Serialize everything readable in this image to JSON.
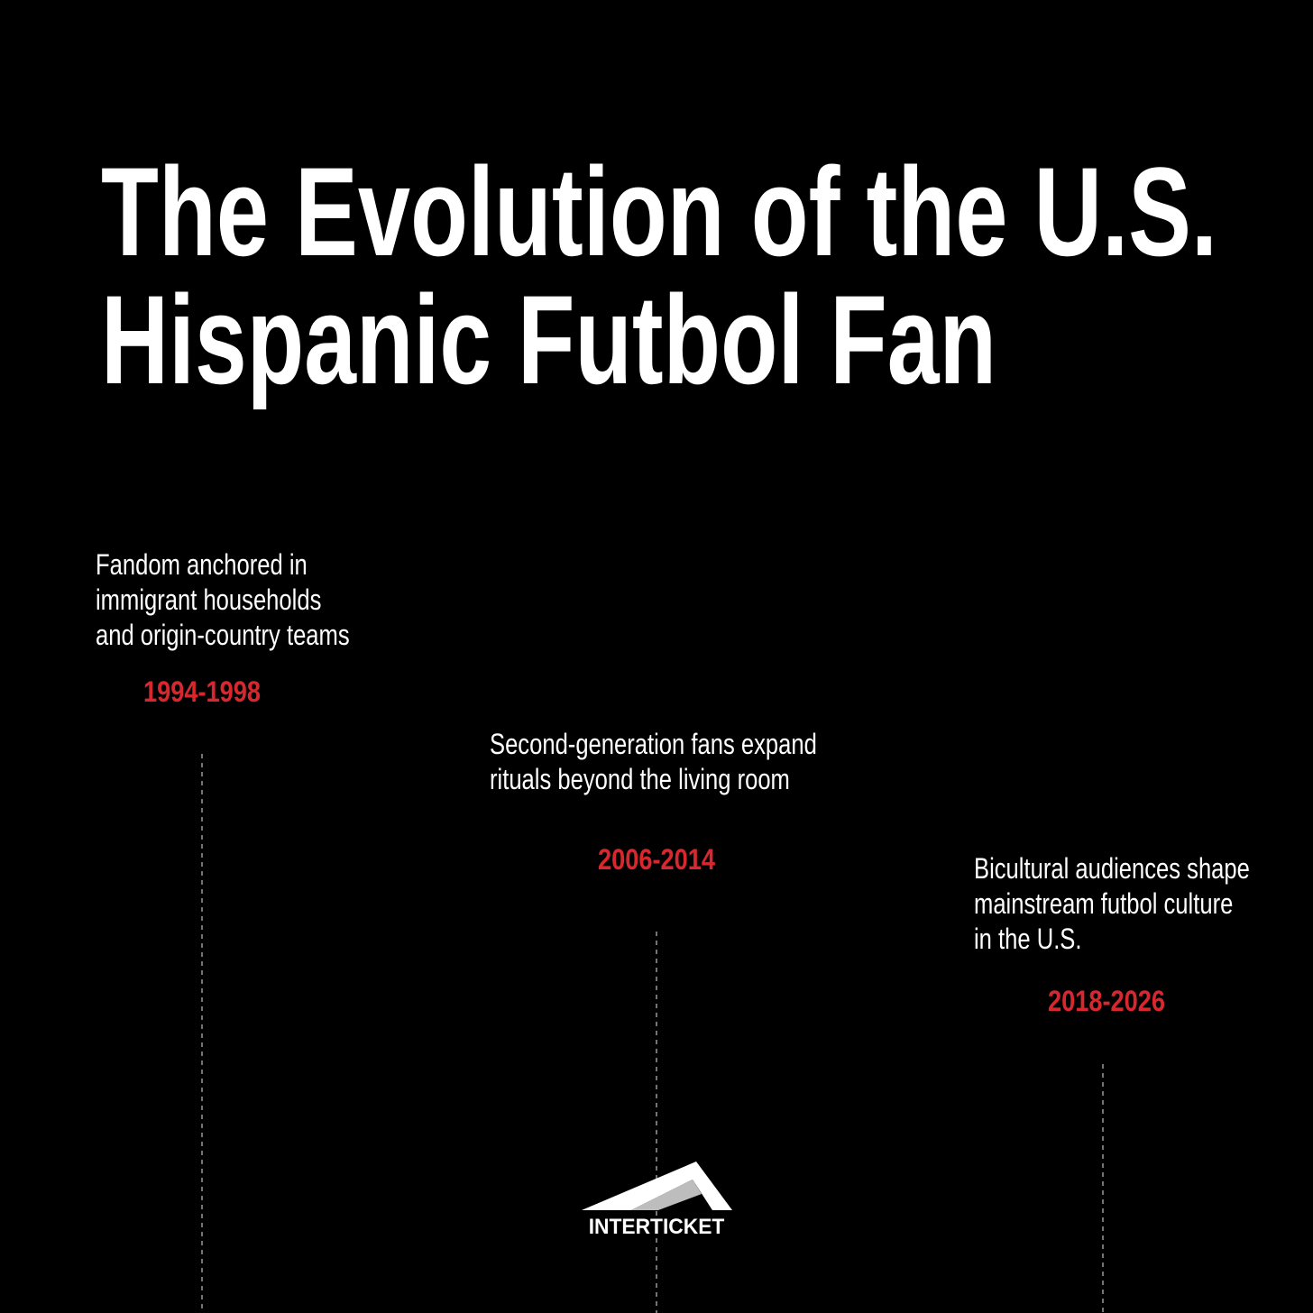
{
  "header": {
    "title": [
      "The Evolution of the U.S.",
      "Hispanic Futbol Fan"
    ]
  },
  "timeline": {
    "events": [
      {
        "description": [
          "Fandom anchored in",
          "immigrant households",
          "and origin-country teams"
        ],
        "period": "1994-1998"
      },
      {
        "description": [
          "Second-generation fans expand",
          "rituals beyond the living room"
        ],
        "period": "2006-2014"
      },
      {
        "description": [
          "Bicultural audiences shape",
          "mainstream futbol culture",
          "in the U.S."
        ],
        "period": "2018-2026"
      }
    ]
  },
  "footer": {
    "logo": "INTERTICKET"
  }
}
